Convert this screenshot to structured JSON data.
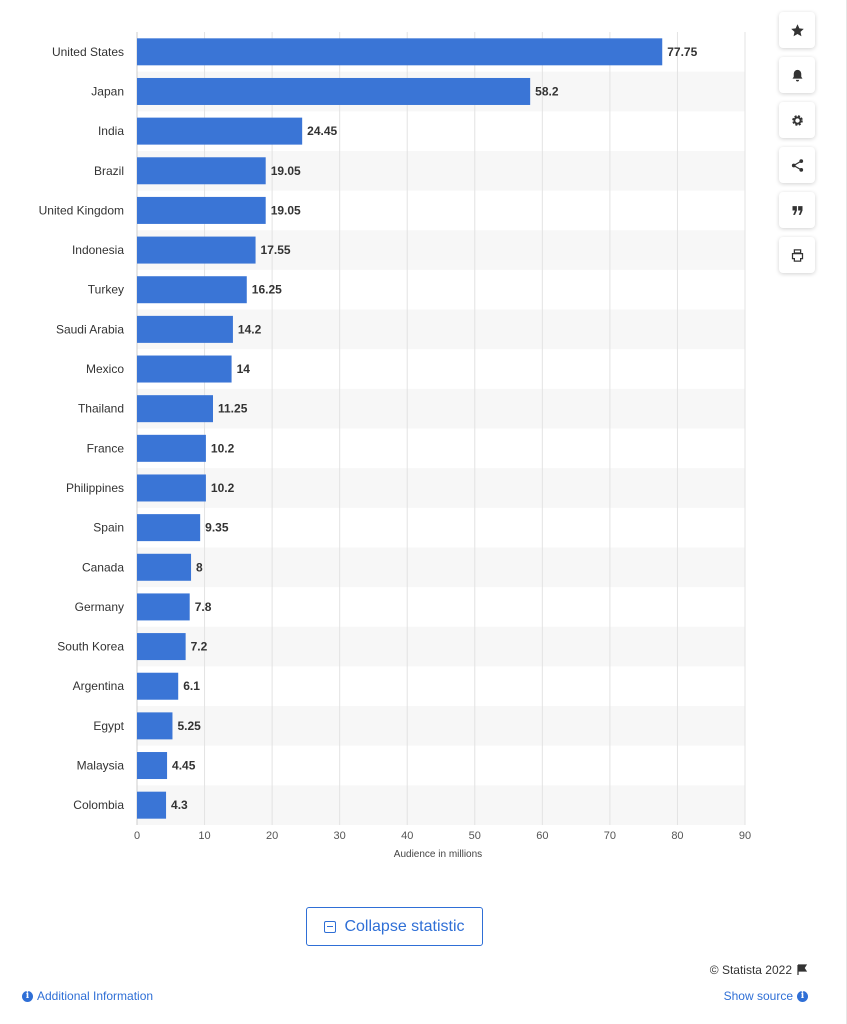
{
  "chart_data": {
    "type": "bar",
    "orientation": "horizontal",
    "categories": [
      "United States",
      "Japan",
      "India",
      "Brazil",
      "United Kingdom",
      "Indonesia",
      "Turkey",
      "Saudi Arabia",
      "Mexico",
      "Thailand",
      "France",
      "Philippines",
      "Spain",
      "Canada",
      "Germany",
      "South Korea",
      "Argentina",
      "Egypt",
      "Malaysia",
      "Colombia"
    ],
    "values": [
      77.75,
      58.2,
      24.45,
      19.05,
      19.05,
      17.55,
      16.25,
      14.2,
      14,
      11.25,
      10.2,
      10.2,
      9.35,
      8,
      7.8,
      7.2,
      6.1,
      5.25,
      4.45,
      4.3
    ],
    "value_labels": [
      "77.75",
      "58.2",
      "24.45",
      "19.05",
      "19.05",
      "17.55",
      "16.25",
      "14.2",
      "14",
      "11.25",
      "10.2",
      "10.2",
      "9.35",
      "8",
      "7.8",
      "7.2",
      "6.1",
      "5.25",
      "4.45",
      "4.3"
    ],
    "xlabel": "Audience in millions",
    "xlim": [
      0,
      90
    ],
    "x_ticks": [
      "0",
      "10",
      "20",
      "30",
      "40",
      "50",
      "60",
      "70",
      "80",
      "90"
    ],
    "grid": true,
    "colors": {
      "bar": "#3a75d6",
      "stripe": "#f7f7f7",
      "grid": "#e3e3e3"
    }
  },
  "toolbar": {
    "icons": [
      "star-icon",
      "bell-icon",
      "gear-icon",
      "share-icon",
      "quote-icon",
      "print-icon"
    ]
  },
  "collapse_label": "Collapse statistic",
  "footer": {
    "copyright": "© Statista 2022",
    "additional_info": "Additional Information",
    "show_source": "Show source"
  }
}
